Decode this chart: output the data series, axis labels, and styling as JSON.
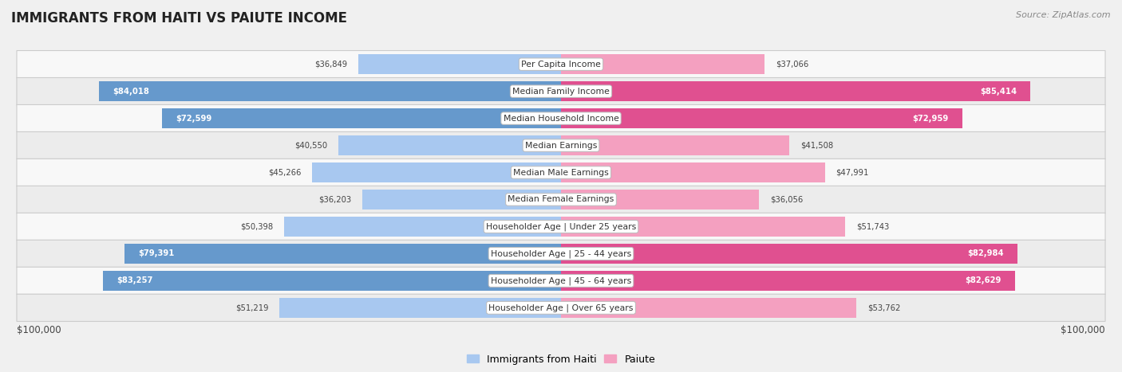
{
  "title": "IMMIGRANTS FROM HAITI VS PAIUTE INCOME",
  "source": "Source: ZipAtlas.com",
  "categories": [
    "Per Capita Income",
    "Median Family Income",
    "Median Household Income",
    "Median Earnings",
    "Median Male Earnings",
    "Median Female Earnings",
    "Householder Age | Under 25 years",
    "Householder Age | 25 - 44 years",
    "Householder Age | 45 - 64 years",
    "Householder Age | Over 65 years"
  ],
  "haiti_values": [
    36849,
    84018,
    72599,
    40550,
    45266,
    36203,
    50398,
    79391,
    83257,
    51219
  ],
  "paiute_values": [
    37066,
    85414,
    72959,
    41508,
    47991,
    36056,
    51743,
    82984,
    82629,
    53762
  ],
  "haiti_labels": [
    "$36,849",
    "$84,018",
    "$72,599",
    "$40,550",
    "$45,266",
    "$36,203",
    "$50,398",
    "$79,391",
    "$83,257",
    "$51,219"
  ],
  "paiute_labels": [
    "$37,066",
    "$85,414",
    "$72,959",
    "$41,508",
    "$47,991",
    "$36,056",
    "$51,743",
    "$82,984",
    "$82,629",
    "$53,762"
  ],
  "haiti_color_light": "#a8c8f0",
  "haiti_color_dark": "#6699cc",
  "paiute_color_light": "#f4a0c0",
  "paiute_color_dark": "#e05090",
  "max_value": 100000,
  "background_color": "#f0f0f0",
  "row_colors": [
    "#f8f8f8",
    "#ececec"
  ],
  "row_border_color": "#cccccc",
  "xlabel_left": "$100,000",
  "xlabel_right": "$100,000",
  "legend_haiti": "Immigrants from Haiti",
  "legend_paiute": "Paiute",
  "inside_label_threshold": 55000,
  "haiti_inside_text_color": "#ffffff",
  "haiti_outside_text_color": "#444444",
  "paiute_inside_text_color": "#ffffff",
  "paiute_outside_text_color": "#444444"
}
